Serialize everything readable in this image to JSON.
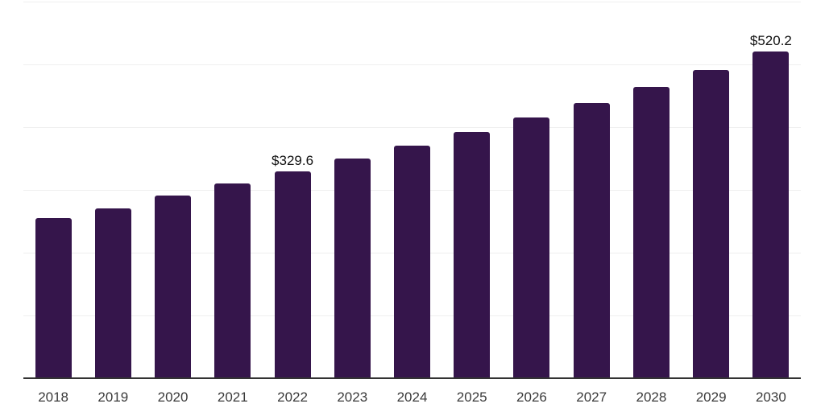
{
  "chart_data": {
    "type": "bar",
    "title": "",
    "xlabel": "",
    "ylabel": "",
    "categories": [
      "2018",
      "2019",
      "2020",
      "2021",
      "2022",
      "2023",
      "2024",
      "2025",
      "2026",
      "2027",
      "2028",
      "2029",
      "2030"
    ],
    "values": [
      255.5,
      271.0,
      290.5,
      310.0,
      329.6,
      349.4,
      370.0,
      391.8,
      415.2,
      438.8,
      463.5,
      490.8,
      520.2
    ],
    "data_labels": [
      {
        "category": "2022",
        "text": "$329.6"
      },
      {
        "category": "2030",
        "text": "$520.2"
      }
    ],
    "ylim": [
      0,
      600
    ],
    "gridline_step": 100,
    "grid": true,
    "legend": false,
    "colors": {
      "bar": "#35154B",
      "gridline": "#EFEFEF",
      "axis_line": "#333333",
      "tick_label": "#3A3A3A",
      "data_label": "#111111",
      "background": "#FFFFFF"
    }
  }
}
